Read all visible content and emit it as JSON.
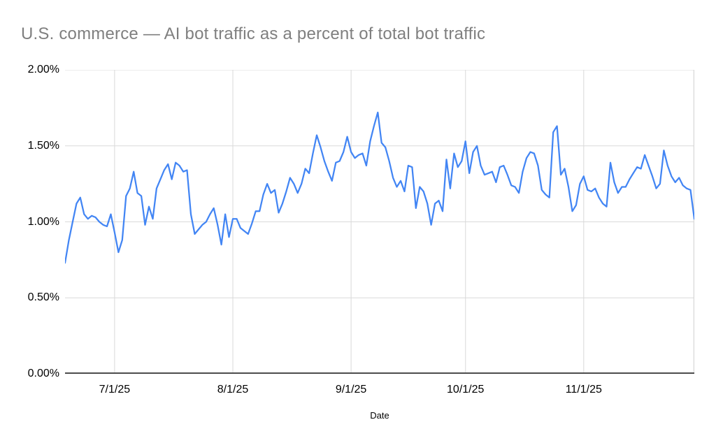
{
  "page": {
    "background": "#ffffff"
  },
  "chart_data": {
    "type": "line",
    "title": "U.S. commerce — AI bot traffic as a percent of total bot traffic",
    "xlabel": "Date",
    "ylabel": "",
    "grid": true,
    "legend_position": "none",
    "ylim": [
      0,
      2
    ],
    "y_axis": {
      "tick_labels": [
        "0.00%",
        "0.50%",
        "1.00%",
        "1.50%",
        "2.00%"
      ],
      "tick_values": [
        0,
        0.5,
        1.0,
        1.5,
        2.0
      ],
      "unit": "percent"
    },
    "x_axis": {
      "tick_labels": [
        "7/1/25",
        "8/1/25",
        "9/1/25",
        "10/1/25",
        "11/1/25"
      ],
      "tick_indices": [
        13,
        44,
        75,
        105,
        136
      ],
      "right_edge_gridline": true,
      "cadence": "daily"
    },
    "series": [
      {
        "name": "AI bot traffic as a percent of total bot traffic",
        "color": "#4285f4",
        "values": [
          0.73,
          0.88,
          1.0,
          1.12,
          1.16,
          1.05,
          1.02,
          1.04,
          1.03,
          1.0,
          0.98,
          0.97,
          1.05,
          0.93,
          0.8,
          0.88,
          1.17,
          1.22,
          1.33,
          1.19,
          1.17,
          0.98,
          1.1,
          1.02,
          1.22,
          1.28,
          1.34,
          1.38,
          1.28,
          1.39,
          1.37,
          1.33,
          1.34,
          1.05,
          0.92,
          0.95,
          0.98,
          1.0,
          1.05,
          1.09,
          0.98,
          0.85,
          1.05,
          0.9,
          1.02,
          1.02,
          0.96,
          0.94,
          0.92,
          0.99,
          1.07,
          1.07,
          1.18,
          1.25,
          1.19,
          1.21,
          1.06,
          1.12,
          1.2,
          1.29,
          1.25,
          1.19,
          1.25,
          1.35,
          1.32,
          1.45,
          1.57,
          1.49,
          1.4,
          1.33,
          1.27,
          1.39,
          1.4,
          1.46,
          1.56,
          1.46,
          1.42,
          1.44,
          1.45,
          1.37,
          1.53,
          1.63,
          1.72,
          1.52,
          1.49,
          1.4,
          1.29,
          1.23,
          1.27,
          1.2,
          1.37,
          1.36,
          1.09,
          1.23,
          1.2,
          1.12,
          0.98,
          1.12,
          1.14,
          1.07,
          1.41,
          1.22,
          1.45,
          1.36,
          1.4,
          1.53,
          1.32,
          1.46,
          1.5,
          1.37,
          1.31,
          1.32,
          1.33,
          1.26,
          1.36,
          1.37,
          1.31,
          1.24,
          1.23,
          1.19,
          1.33,
          1.42,
          1.46,
          1.45,
          1.37,
          1.21,
          1.18,
          1.16,
          1.59,
          1.63,
          1.31,
          1.35,
          1.23,
          1.07,
          1.11,
          1.25,
          1.3,
          1.21,
          1.2,
          1.22,
          1.16,
          1.12,
          1.1,
          1.39,
          1.26,
          1.19,
          1.23,
          1.23,
          1.28,
          1.32,
          1.36,
          1.35,
          1.44,
          1.37,
          1.3,
          1.22,
          1.25,
          1.47,
          1.37,
          1.3,
          1.26,
          1.29,
          1.24,
          1.22,
          1.21,
          1.02
        ]
      }
    ],
    "styles": {
      "title_color": "#7f7f7f",
      "tick_label_color": "#000000",
      "gridline_color": "#d9d9d9",
      "baseline_color": "#4d4d4d",
      "line_color": "#4285f4",
      "background": "#ffffff"
    }
  }
}
